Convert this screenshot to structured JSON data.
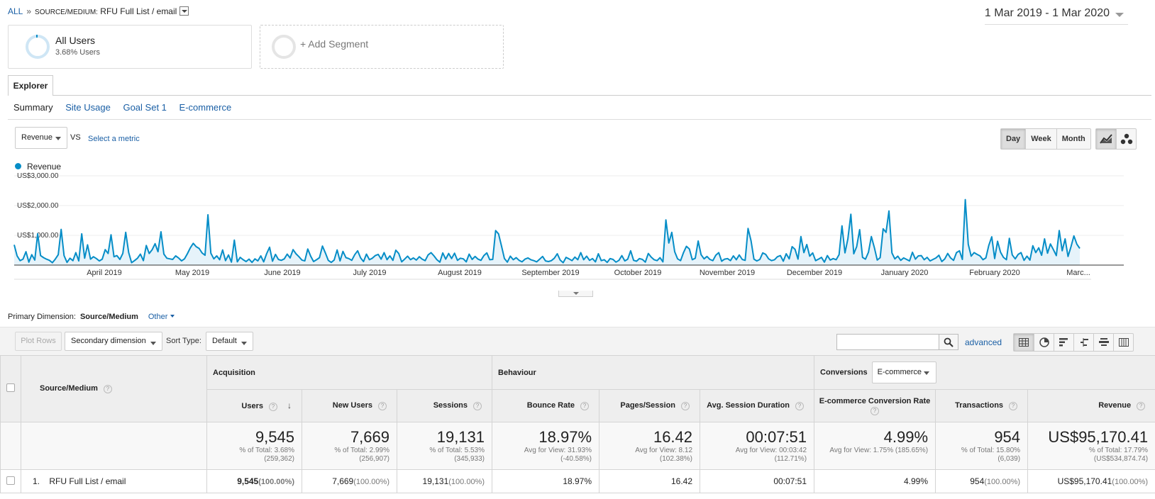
{
  "breadcrumb": {
    "all": "ALL",
    "sep": "»",
    "key": "SOURCE/MEDIUM:",
    "value": "RFU Full List / email"
  },
  "date_range": "1 Mar 2019 - 1 Mar 2020",
  "segments": {
    "all_users": {
      "title": "All Users",
      "subtitle": "3.68% Users"
    },
    "add": "+ Add Segment"
  },
  "tabs": {
    "explorer": "Explorer"
  },
  "subtabs": [
    "Summary",
    "Site Usage",
    "Goal Set 1",
    "E-commerce"
  ],
  "metric": {
    "selected": "Revenue",
    "vs": "VS",
    "select_metric": "Select a metric"
  },
  "time_buttons": [
    "Day",
    "Week",
    "Month"
  ],
  "legend": {
    "label": "Revenue",
    "color": "#058dc7"
  },
  "chart_data": {
    "type": "area",
    "series": [
      {
        "name": "Revenue",
        "values": [
          680,
          310,
          150,
          200,
          450,
          100,
          350,
          170,
          1050,
          320,
          250,
          200,
          160,
          80,
          200,
          350,
          1200,
          320,
          90,
          230,
          150,
          420,
          140,
          1050,
          230,
          680,
          200,
          280,
          220,
          140,
          200,
          520,
          390,
          1020,
          280,
          320,
          190,
          390,
          1100,
          420,
          80,
          150,
          230,
          370,
          150,
          660,
          390,
          520,
          720,
          450,
          1120,
          370,
          230,
          210,
          190,
          310,
          240,
          140,
          210,
          380,
          580,
          730,
          620,
          560,
          410,
          330,
          1690,
          400,
          210,
          310,
          180,
          510,
          150,
          340,
          100,
          840,
          110,
          260,
          180,
          120,
          200,
          90,
          210,
          140,
          310,
          110,
          380,
          600,
          130,
          360,
          190,
          160,
          210,
          370,
          240,
          520,
          380,
          280,
          170,
          140,
          540,
          300,
          120,
          180,
          250,
          640,
          410,
          160,
          90,
          170,
          510,
          140,
          460,
          250,
          220,
          160,
          350,
          480,
          240,
          120,
          370,
          180,
          230,
          320,
          360,
          200,
          420,
          180,
          310,
          160,
          500,
          390,
          110,
          200,
          300,
          180,
          240,
          170,
          280,
          200,
          150,
          340,
          420,
          310,
          180,
          100,
          410,
          200,
          390,
          220,
          400,
          160,
          230,
          210,
          110,
          370,
          190,
          290,
          200,
          160,
          320,
          410,
          180,
          190,
          1160,
          1050,
          640,
          220,
          100,
          300,
          180,
          250,
          160,
          110,
          200,
          240,
          180,
          150,
          110,
          200,
          290,
          140,
          120,
          150,
          230,
          380,
          170,
          80,
          260,
          210,
          150,
          270,
          180,
          420,
          180,
          300,
          160,
          220,
          110,
          380,
          150,
          180,
          90,
          220,
          190,
          100,
          160,
          320,
          140,
          200,
          480,
          160,
          130,
          220,
          190,
          100,
          390,
          270,
          180,
          150,
          250,
          110,
          1520,
          740,
          1100,
          450,
          210,
          150,
          420,
          630,
          540,
          180,
          230,
          810,
          350,
          210,
          290,
          190,
          150,
          330,
          420,
          130,
          200,
          220,
          150,
          310,
          180,
          340,
          190,
          160,
          1230,
          820,
          200,
          140,
          190,
          410,
          360,
          210,
          150,
          180,
          280,
          320,
          130,
          380,
          210,
          620,
          530,
          200,
          960,
          420,
          690,
          300,
          410,
          150,
          200,
          260,
          100,
          320,
          170,
          220,
          180,
          350,
          1320,
          410,
          880,
          1710,
          380,
          620,
          1190,
          260,
          200,
          430,
          960,
          590,
          170,
          250,
          1220,
          1100,
          1820,
          410,
          210,
          300,
          160,
          240,
          190,
          140,
          430,
          200,
          310,
          320,
          180,
          260,
          140,
          190,
          240,
          330,
          120,
          210,
          390,
          240,
          160,
          420,
          480,
          190,
          2200,
          700,
          300,
          420,
          360,
          310,
          180,
          240,
          660,
          950,
          220,
          800,
          430,
          260,
          180,
          900,
          340,
          210,
          360,
          420,
          160,
          300,
          170,
          650,
          420,
          580,
          330,
          880,
          400,
          710,
          520,
          320,
          1160,
          480,
          880,
          290,
          620,
          980,
          700,
          560
        ]
      }
    ],
    "x_labels": [
      "April 2019",
      "May 2019",
      "June 2019",
      "July 2019",
      "August 2019",
      "September 2019",
      "October 2019",
      "November 2019",
      "December 2019",
      "January 2020",
      "February 2020",
      "Marc..."
    ],
    "y_labels": [
      "US$1,000.00",
      "US$2,000.00",
      "US$3,000.00"
    ],
    "ylim": [
      0,
      3000
    ],
    "grid": true,
    "color": "#058dc7"
  },
  "primary_dimension": {
    "label": "Primary Dimension:",
    "selected": "Source/Medium",
    "other": "Other"
  },
  "toolbar": {
    "plot_rows": "Plot Rows",
    "secondary_dimension": "Secondary dimension",
    "sort_type_label": "Sort Type:",
    "sort_type": "Default",
    "advanced": "advanced"
  },
  "table": {
    "dimension_header": "Source/Medium",
    "groups": {
      "acquisition": "Acquisition",
      "behaviour": "Behaviour",
      "conversions": "Conversions",
      "conversions_select": "E-commerce"
    },
    "columns": [
      "Users",
      "New Users",
      "Sessions",
      "Bounce Rate",
      "Pages/Session",
      "Avg. Session Duration",
      "E-commerce Conversion Rate",
      "Transactions",
      "Revenue"
    ],
    "totals": [
      {
        "value": "9,545",
        "sub1": "% of Total: 3.68%",
        "sub2": "(259,362)"
      },
      {
        "value": "7,669",
        "sub1": "% of Total: 2.99%",
        "sub2": "(256,907)"
      },
      {
        "value": "19,131",
        "sub1": "% of Total: 5.53%",
        "sub2": "(345,933)"
      },
      {
        "value": "18.97%",
        "sub1": "Avg for View: 31.93%",
        "sub2": "(-40.58%)"
      },
      {
        "value": "16.42",
        "sub1": "Avg for View: 8.12",
        "sub2": "(102.38%)"
      },
      {
        "value": "00:07:51",
        "sub1": "Avg for View: 00:03:42",
        "sub2": "(112.71%)"
      },
      {
        "value": "4.99%",
        "sub1": "Avg for View: 1.75% (185.65%)",
        "sub2": ""
      },
      {
        "value": "954",
        "sub1": "% of Total: 15.80%",
        "sub2": "(6,039)"
      },
      {
        "value": "US$95,170.41",
        "sub1": "% of Total: 17.79%",
        "sub2": "(US$534,874.74)"
      }
    ],
    "rows": [
      {
        "index": "1.",
        "name": "RFU Full List / email",
        "cells": [
          {
            "v": "9,545",
            "p": "(100.00%)"
          },
          {
            "v": "7,669",
            "p": "(100.00%)"
          },
          {
            "v": "19,131",
            "p": "(100.00%)"
          },
          {
            "v": "18.97%",
            "p": ""
          },
          {
            "v": "16.42",
            "p": ""
          },
          {
            "v": "00:07:51",
            "p": ""
          },
          {
            "v": "4.99%",
            "p": ""
          },
          {
            "v": "954",
            "p": "(100.00%)"
          },
          {
            "v": "US$95,170.41",
            "p": "(100.00%)"
          }
        ]
      }
    ]
  }
}
